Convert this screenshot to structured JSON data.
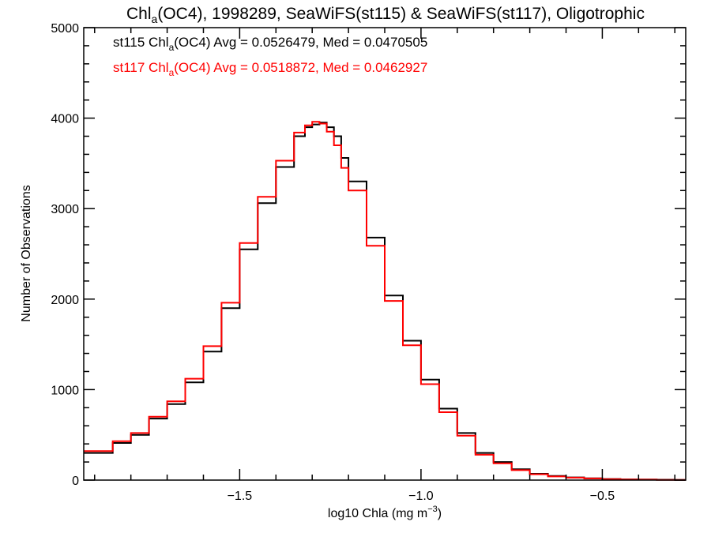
{
  "chart_data": {
    "type": "line",
    "title": {
      "pre": "Chl",
      "sub": "a",
      "post": "(OC4), 1998289, SeaWiFS(st115) & SeaWiFS(st117), Oligotrophic"
    },
    "xlabel": {
      "pre": "log10 Chla (mg m",
      "sup": "−3",
      "post": ")"
    },
    "ylabel": "Number of Observations",
    "xlim": [
      -1.93,
      -0.27
    ],
    "ylim": [
      0,
      5000
    ],
    "x_ticks": [
      -1.5,
      -1.0,
      -0.5
    ],
    "x_tick_labels": [
      "−1.5",
      "−1.0",
      "−0.5"
    ],
    "y_ticks": [
      0,
      1000,
      2000,
      3000,
      4000,
      5000
    ],
    "y_tick_labels": [
      "0",
      "1000",
      "2000",
      "3000",
      "4000",
      "5000"
    ],
    "grid": false,
    "legend_position": "top-left",
    "series": [
      {
        "name": "st115",
        "color": "#000000",
        "legend": {
          "pre": "st115 Chl",
          "sub": "a",
          "post": "(OC4) Avg = 0.0526479, Med = 0.0470505"
        },
        "x": [
          -1.93,
          -1.85,
          -1.8,
          -1.75,
          -1.7,
          -1.65,
          -1.6,
          -1.55,
          -1.5,
          -1.45,
          -1.4,
          -1.35,
          -1.32,
          -1.3,
          -1.28,
          -1.26,
          -1.24,
          -1.22,
          -1.2,
          -1.15,
          -1.1,
          -1.05,
          -1.0,
          -0.95,
          -0.9,
          -0.85,
          -0.8,
          -0.75,
          -0.7,
          -0.65,
          -0.6,
          -0.55,
          -0.5,
          -0.45,
          -0.4,
          -0.35,
          -0.3,
          -0.27
        ],
        "values": [
          300,
          410,
          500,
          680,
          840,
          1080,
          1420,
          1900,
          2550,
          3060,
          3460,
          3800,
          3900,
          3930,
          3950,
          3900,
          3800,
          3560,
          3300,
          2680,
          2040,
          1540,
          1110,
          790,
          520,
          300,
          200,
          120,
          70,
          45,
          30,
          20,
          12,
          8,
          6,
          4,
          2,
          2
        ]
      },
      {
        "name": "st117",
        "color": "#ff0000",
        "legend": {
          "pre": "st117 Chl",
          "sub": "a",
          "post": "(OC4) Avg = 0.0518872, Med = 0.0462927"
        },
        "x": [
          -1.93,
          -1.85,
          -1.8,
          -1.75,
          -1.7,
          -1.65,
          -1.6,
          -1.55,
          -1.5,
          -1.45,
          -1.4,
          -1.35,
          -1.32,
          -1.3,
          -1.28,
          -1.26,
          -1.24,
          -1.22,
          -1.2,
          -1.15,
          -1.1,
          -1.05,
          -1.0,
          -0.95,
          -0.9,
          -0.85,
          -0.8,
          -0.75,
          -0.7,
          -0.65,
          -0.6,
          -0.55,
          -0.5,
          -0.45,
          -0.4,
          -0.35,
          -0.3,
          -0.27
        ],
        "values": [
          320,
          430,
          520,
          700,
          870,
          1120,
          1480,
          1960,
          2620,
          3130,
          3530,
          3840,
          3920,
          3960,
          3940,
          3850,
          3700,
          3450,
          3200,
          2590,
          1980,
          1490,
          1060,
          750,
          490,
          280,
          185,
          110,
          65,
          40,
          27,
          18,
          10,
          7,
          5,
          3,
          2,
          2
        ]
      }
    ]
  }
}
